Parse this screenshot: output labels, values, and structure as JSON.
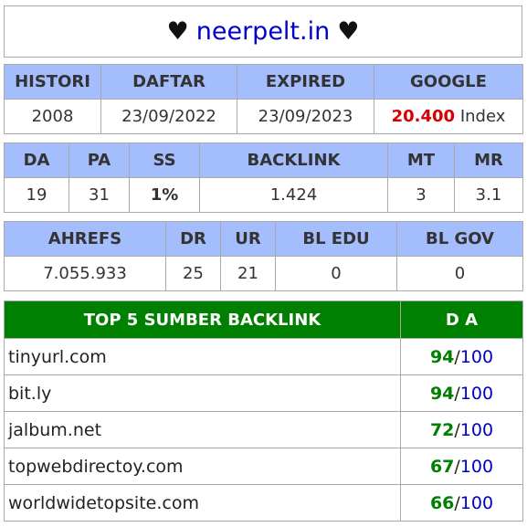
{
  "title": {
    "heart_left": "♥",
    "domain": "neerpelt.in",
    "heart_right": "♥"
  },
  "table1": {
    "headers": [
      "HISTORI",
      "DAFTAR",
      "EXPIRED",
      "GOOGLE"
    ],
    "values": [
      "2008",
      "23/09/2022",
      "23/09/2023"
    ],
    "google_count": "20.400",
    "google_suffix": "Index"
  },
  "table2": {
    "headers": [
      "DA",
      "PA",
      "SS",
      "BACKLINK",
      "MT",
      "MR"
    ],
    "values": [
      "19",
      "31",
      "1%",
      "1.424",
      "3",
      "3.1"
    ]
  },
  "table3": {
    "headers": [
      "AHREFS",
      "DR",
      "UR",
      "BL EDU",
      "BL GOV"
    ],
    "values": [
      "7.055.933",
      "25",
      "21",
      "0",
      "0"
    ]
  },
  "top5": {
    "header_site": "TOP 5 SUMBER BACKLINK",
    "header_da": "D A",
    "rows": [
      {
        "site": "tinyurl.com",
        "da": "94",
        "max": "100"
      },
      {
        "site": "bit.ly",
        "da": "94",
        "max": "100"
      },
      {
        "site": "jalbum.net",
        "da": "72",
        "max": "100"
      },
      {
        "site": "topwebdirectoy.com",
        "da": "67",
        "max": "100"
      },
      {
        "site": "worldwidetopsite.com",
        "da": "66",
        "max": "100"
      }
    ]
  }
}
